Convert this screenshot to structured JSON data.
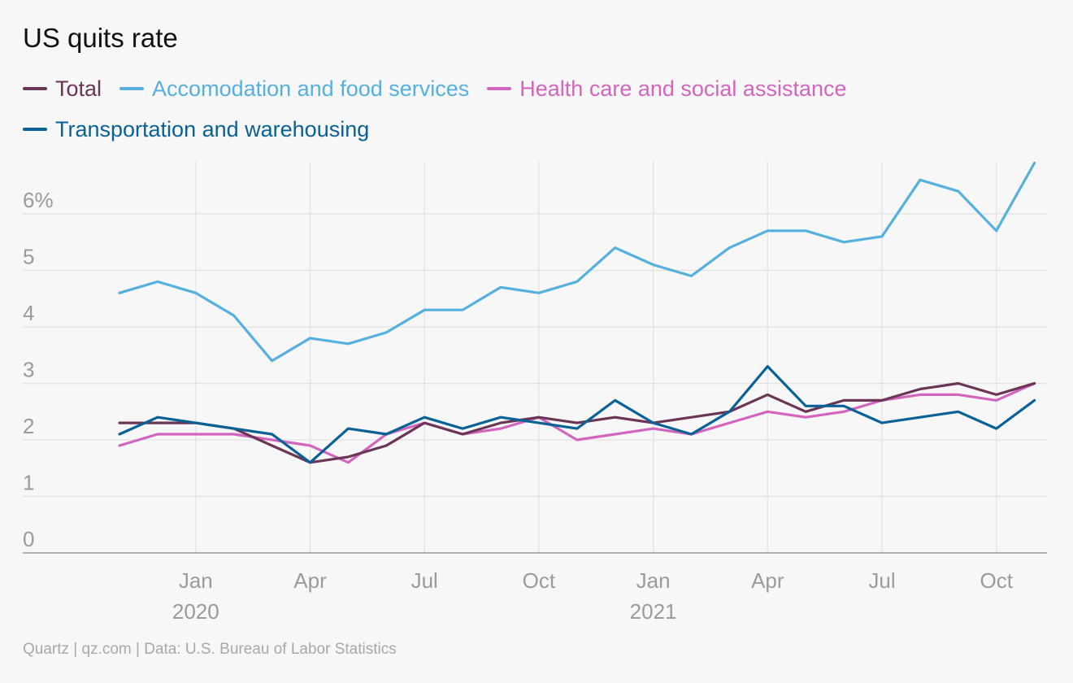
{
  "title": "US quits rate",
  "source": "Quartz | qz.com | Data: U.S. Bureau of Labor Statistics",
  "legend": [
    {
      "label": "Total",
      "color": "#6b3556"
    },
    {
      "label": "Accomodation and food services",
      "color": "#56b0de"
    },
    {
      "label": "Health care and social assistance",
      "color": "#d266be"
    },
    {
      "label": "Transportation and warehousing",
      "color": "#0a6196"
    }
  ],
  "chart_data": {
    "type": "line",
    "title": "US quits rate",
    "xlabel": "",
    "ylabel": "",
    "x": [
      "2019-11",
      "2019-12",
      "2020-01",
      "2020-02",
      "2020-03",
      "2020-04",
      "2020-05",
      "2020-06",
      "2020-07",
      "2020-08",
      "2020-09",
      "2020-10",
      "2020-11",
      "2020-12",
      "2021-01",
      "2021-02",
      "2021-03",
      "2021-04",
      "2021-05",
      "2021-06",
      "2021-07",
      "2021-08",
      "2021-09",
      "2021-10",
      "2021-11"
    ],
    "ylim": [
      0,
      7
    ],
    "yticks": [
      {
        "value": 0,
        "label": "0"
      },
      {
        "value": 1,
        "label": "1"
      },
      {
        "value": 2,
        "label": "2"
      },
      {
        "value": 3,
        "label": "3"
      },
      {
        "value": 4,
        "label": "4"
      },
      {
        "value": 5,
        "label": "5"
      },
      {
        "value": 6,
        "label": "6%"
      }
    ],
    "xticks": [
      {
        "x": "2020-01",
        "label": "Jan",
        "year": "2020"
      },
      {
        "x": "2020-04",
        "label": "Apr",
        "year": ""
      },
      {
        "x": "2020-07",
        "label": "Jul",
        "year": ""
      },
      {
        "x": "2020-10",
        "label": "Oct",
        "year": ""
      },
      {
        "x": "2021-01",
        "label": "Jan",
        "year": "2021"
      },
      {
        "x": "2021-04",
        "label": "Apr",
        "year": ""
      },
      {
        "x": "2021-07",
        "label": "Jul",
        "year": ""
      },
      {
        "x": "2021-10",
        "label": "Oct",
        "year": ""
      }
    ],
    "grid": true,
    "legend_position": "top",
    "series": [
      {
        "name": "Total",
        "color": "#6b3556",
        "values": [
          2.3,
          2.3,
          2.3,
          2.2,
          1.9,
          1.6,
          1.7,
          1.9,
          2.3,
          2.1,
          2.3,
          2.4,
          2.3,
          2.4,
          2.3,
          2.4,
          2.5,
          2.8,
          2.5,
          2.7,
          2.7,
          2.9,
          3.0,
          2.8,
          3.0
        ]
      },
      {
        "name": "Accomodation and food services",
        "color": "#56b0de",
        "values": [
          4.6,
          4.8,
          4.6,
          4.2,
          3.4,
          3.8,
          3.7,
          3.9,
          4.3,
          4.3,
          4.7,
          4.6,
          4.8,
          5.4,
          5.1,
          4.9,
          5.4,
          5.7,
          5.7,
          5.5,
          5.6,
          6.6,
          6.4,
          5.7,
          6.9
        ]
      },
      {
        "name": "Health care and social assistance",
        "color": "#d266be",
        "values": [
          1.9,
          2.1,
          2.1,
          2.1,
          2.0,
          1.9,
          1.6,
          2.1,
          2.3,
          2.1,
          2.2,
          2.4,
          2.0,
          2.1,
          2.2,
          2.1,
          2.3,
          2.5,
          2.4,
          2.5,
          2.7,
          2.8,
          2.8,
          2.7,
          3.0
        ]
      },
      {
        "name": "Transportation and warehousing",
        "color": "#0a6196",
        "values": [
          2.1,
          2.4,
          2.3,
          2.2,
          2.1,
          1.6,
          2.2,
          2.1,
          2.4,
          2.2,
          2.4,
          2.3,
          2.2,
          2.7,
          2.3,
          2.1,
          2.5,
          3.3,
          2.6,
          2.6,
          2.3,
          2.4,
          2.5,
          2.2,
          2.7
        ]
      }
    ]
  }
}
